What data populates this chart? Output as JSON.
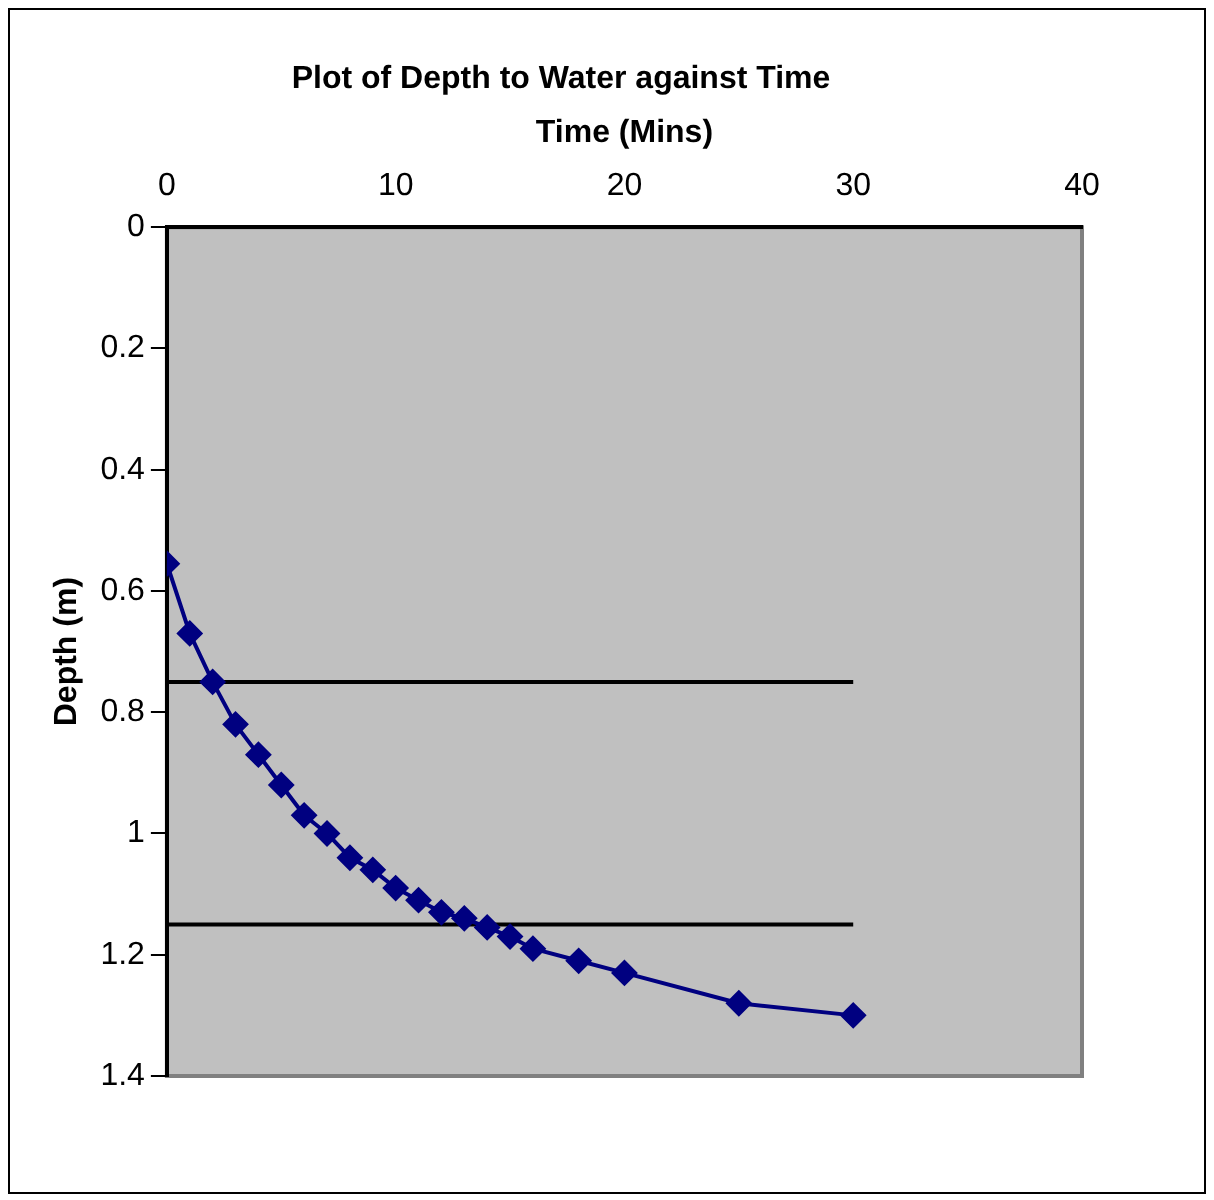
{
  "chart_data": {
    "type": "line",
    "title": "Plot of Depth to Water against Time",
    "xlabel": "Time (Mins)",
    "ylabel": "Depth (m)",
    "xlim": [
      0,
      40
    ],
    "xticks": [
      0,
      10,
      20,
      30,
      40
    ],
    "ylim": [
      1.4,
      0
    ],
    "yticks": [
      0,
      0.2,
      0.4,
      0.6,
      0.8,
      1,
      1.2,
      1.4
    ],
    "grid": false,
    "legend": false,
    "series": [
      {
        "color": "#000080",
        "marker": "diamond",
        "x": [
          0,
          1,
          2,
          3,
          4,
          5,
          6,
          7,
          8,
          9,
          10,
          11,
          12,
          13,
          14,
          15,
          16,
          18,
          20,
          25,
          30
        ],
        "values": [
          0.555,
          0.67,
          0.75,
          0.82,
          0.87,
          0.92,
          0.97,
          1.0,
          1.04,
          1.06,
          1.09,
          1.11,
          1.13,
          1.14,
          1.155,
          1.17,
          1.19,
          1.21,
          1.23,
          1.28,
          1.3
        ]
      },
      {
        "color": "#000000",
        "marker": "none",
        "x": [
          0,
          30
        ],
        "values": [
          0.75,
          0.75
        ]
      },
      {
        "color": "#000000",
        "marker": "none",
        "x": [
          0,
          30
        ],
        "values": [
          1.15,
          1.15
        ]
      }
    ]
  }
}
